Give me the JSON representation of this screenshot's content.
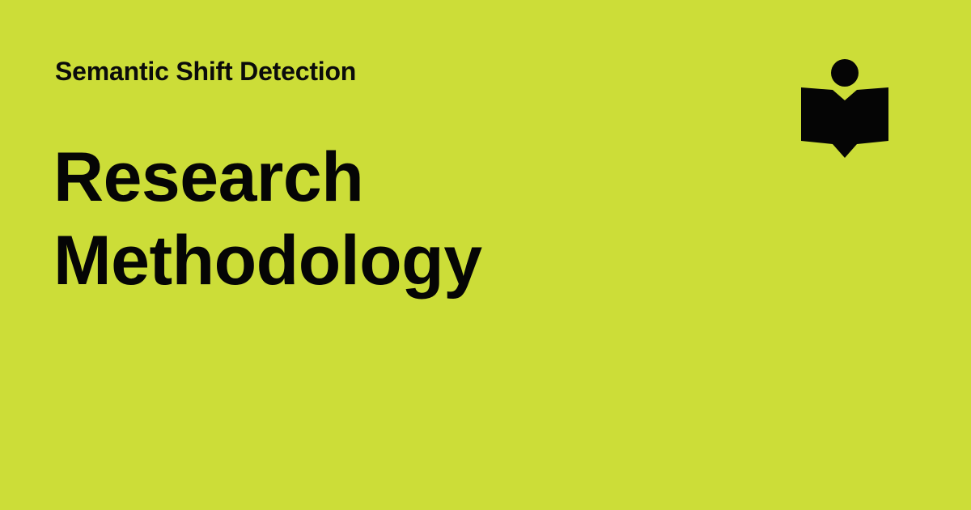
{
  "header": {
    "site_name": "Semantic Shift Detection"
  },
  "main": {
    "title": "Research Methodology"
  },
  "logo": {
    "icon": "reader-book-icon"
  },
  "colors": {
    "background": "#CCDD38",
    "text": "#050505"
  }
}
